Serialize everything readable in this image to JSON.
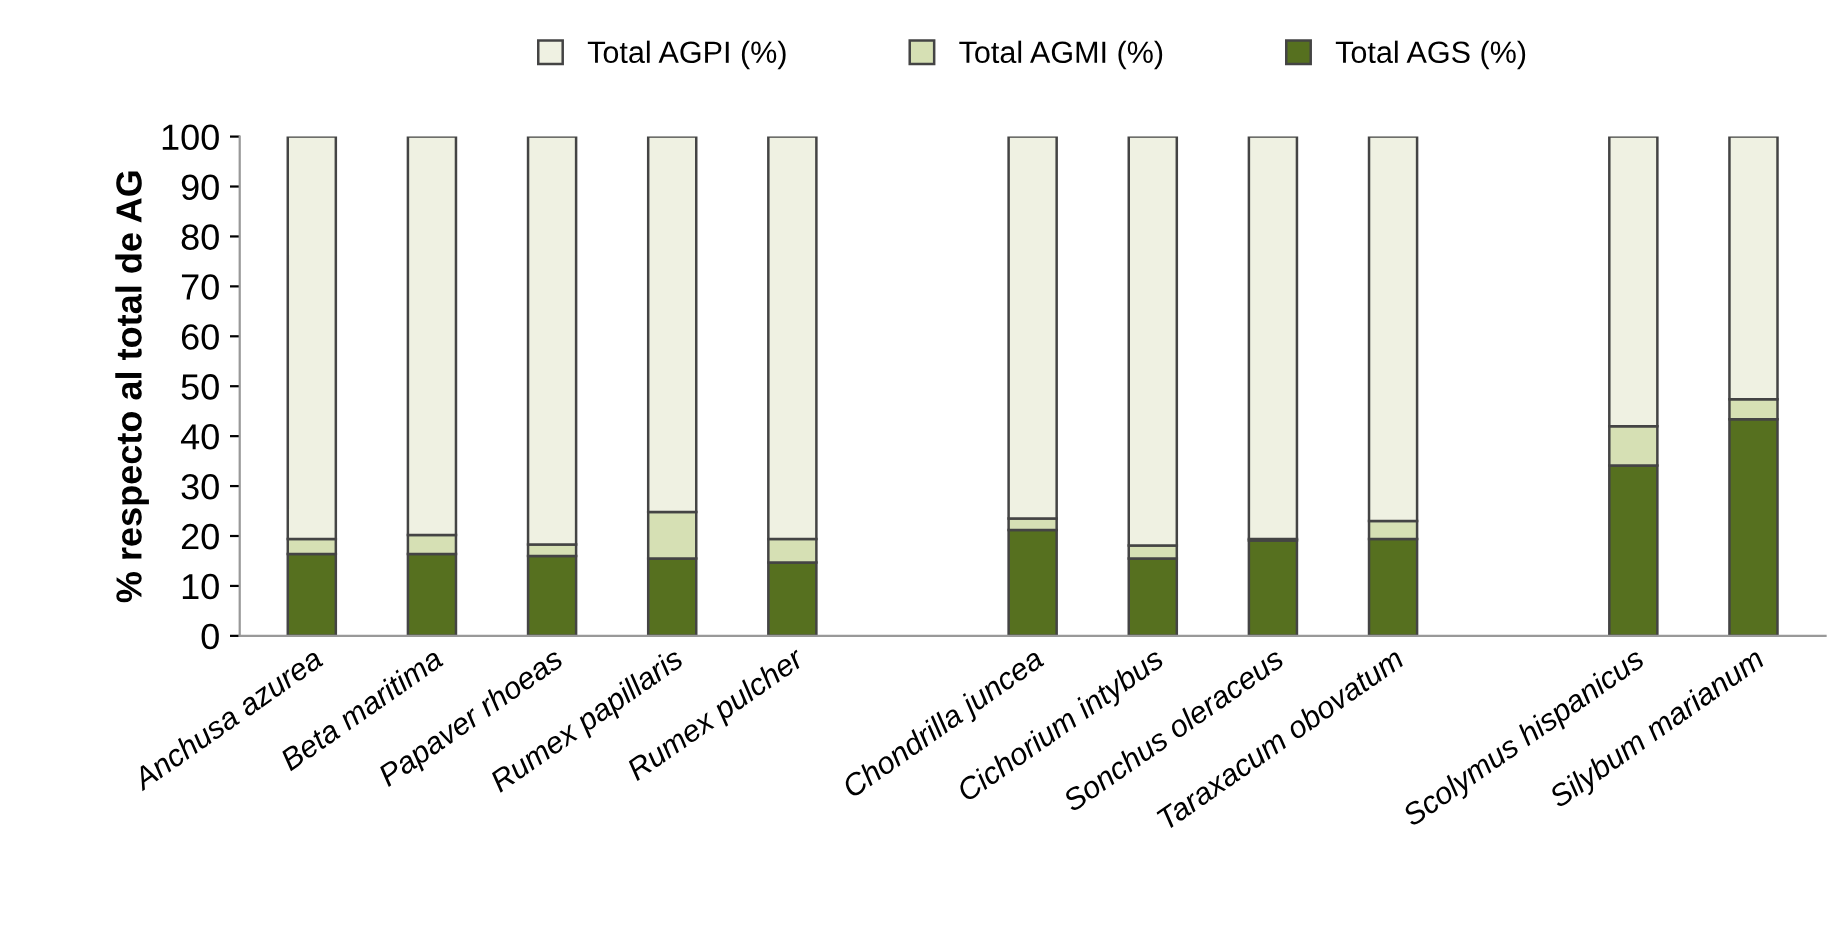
{
  "chart_data": {
    "type": "bar",
    "stacked": true,
    "ylabel": "% respecto al total de AG",
    "categories": [
      "Anchusa azurea",
      "Beta maritima",
      "Papaver rhoeas",
      "Rumex papillaris",
      "Rumex pulcher",
      null,
      "Chondrilla juncea",
      "Cichorium intybus",
      "Sonchus oleraceus",
      "Taraxacum obovatum",
      null,
      "Scolymus hispanicus",
      "Silybum marianum"
    ],
    "series": [
      {
        "name": "Total AGS (%)",
        "color": "#56701f",
        "values": [
          16.4,
          16.4,
          16.0,
          15.5,
          14.7,
          null,
          21.2,
          15.5,
          19.1,
          19.4,
          null,
          34.1,
          43.4
        ]
      },
      {
        "name": "Total AGMI (%)",
        "color": "#d6e0b4",
        "values": [
          3.0,
          3.8,
          2.3,
          9.3,
          4.7,
          null,
          2.3,
          2.6,
          0.3,
          3.6,
          null,
          7.9,
          4.0
        ]
      },
      {
        "name": "Total AGPI (%)",
        "color": "#eff1e2",
        "values": [
          80.6,
          79.8,
          81.7,
          75.2,
          80.6,
          null,
          76.5,
          81.9,
          80.6,
          77.0,
          null,
          58.0,
          52.6
        ]
      }
    ],
    "ylim": [
      0,
      100
    ],
    "yticks": [
      0,
      10,
      20,
      30,
      40,
      50,
      60,
      70,
      80,
      90,
      100
    ],
    "grid": false,
    "legend": "top"
  }
}
